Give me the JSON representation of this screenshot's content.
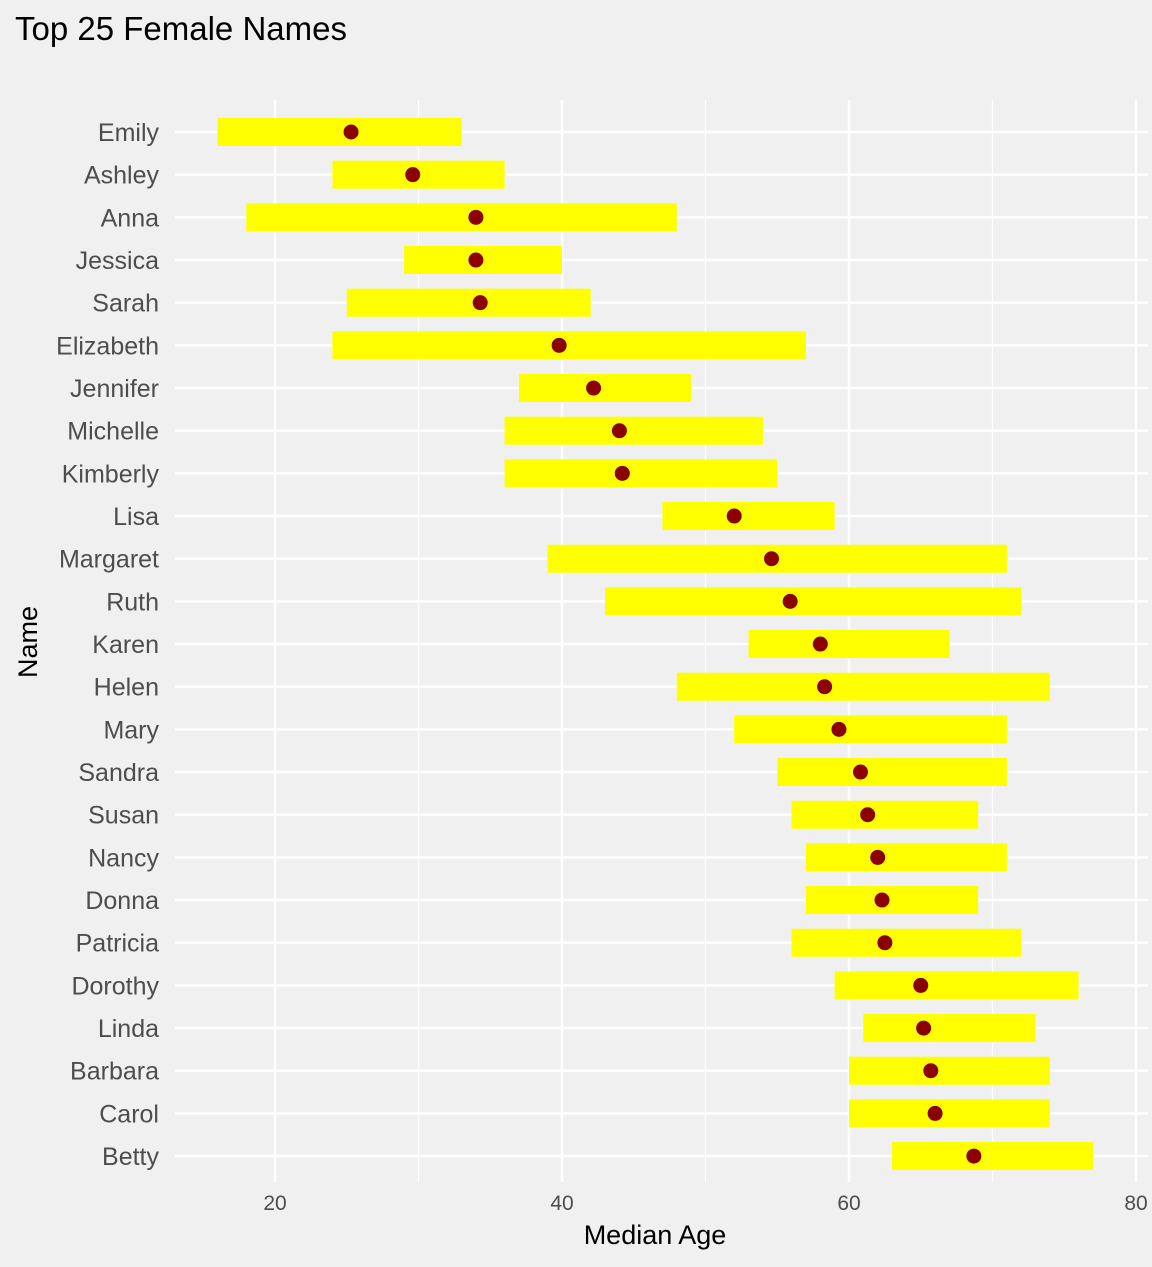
{
  "chart_data": {
    "type": "range-dot",
    "title": "Top 25 Female Names",
    "xlabel": "Median Age",
    "ylabel": "Name",
    "xlim": [
      12,
      81
    ],
    "xticks": [
      20,
      40,
      60,
      80
    ],
    "grid": true,
    "colors": {
      "range": "#ffff00",
      "median": "#8b0000",
      "background": "#f0f0f0",
      "grid": "#ffffff"
    },
    "series": [
      {
        "name": "Emily",
        "q1": 16,
        "q3": 33,
        "median": 25.3
      },
      {
        "name": "Ashley",
        "q1": 24,
        "q3": 36,
        "median": 29.6
      },
      {
        "name": "Anna",
        "q1": 18,
        "q3": 48,
        "median": 34.0
      },
      {
        "name": "Jessica",
        "q1": 29,
        "q3": 40,
        "median": 34.0
      },
      {
        "name": "Sarah",
        "q1": 25,
        "q3": 42,
        "median": 34.3
      },
      {
        "name": "Elizabeth",
        "q1": 24,
        "q3": 57,
        "median": 39.8
      },
      {
        "name": "Jennifer",
        "q1": 37,
        "q3": 49,
        "median": 42.2
      },
      {
        "name": "Michelle",
        "q1": 36,
        "q3": 54,
        "median": 44.0
      },
      {
        "name": "Kimberly",
        "q1": 36,
        "q3": 55,
        "median": 44.2
      },
      {
        "name": "Lisa",
        "q1": 47,
        "q3": 59,
        "median": 52.0
      },
      {
        "name": "Margaret",
        "q1": 39,
        "q3": 71,
        "median": 54.6
      },
      {
        "name": "Ruth",
        "q1": 43,
        "q3": 72,
        "median": 55.9
      },
      {
        "name": "Karen",
        "q1": 53,
        "q3": 67,
        "median": 58.0
      },
      {
        "name": "Helen",
        "q1": 48,
        "q3": 74,
        "median": 58.3
      },
      {
        "name": "Mary",
        "q1": 52,
        "q3": 71,
        "median": 59.3
      },
      {
        "name": "Sandra",
        "q1": 55,
        "q3": 71,
        "median": 60.8
      },
      {
        "name": "Susan",
        "q1": 56,
        "q3": 69,
        "median": 61.3
      },
      {
        "name": "Nancy",
        "q1": 57,
        "q3": 71,
        "median": 62.0
      },
      {
        "name": "Donna",
        "q1": 57,
        "q3": 69,
        "median": 62.3
      },
      {
        "name": "Patricia",
        "q1": 56,
        "q3": 72,
        "median": 62.5
      },
      {
        "name": "Dorothy",
        "q1": 59,
        "q3": 76,
        "median": 65.0
      },
      {
        "name": "Linda",
        "q1": 61,
        "q3": 73,
        "median": 65.2
      },
      {
        "name": "Barbara",
        "q1": 60,
        "q3": 74,
        "median": 65.7
      },
      {
        "name": "Carol",
        "q1": 60,
        "q3": 74,
        "median": 66.0
      },
      {
        "name": "Betty",
        "q1": 63,
        "q3": 77,
        "median": 68.7
      }
    ]
  }
}
